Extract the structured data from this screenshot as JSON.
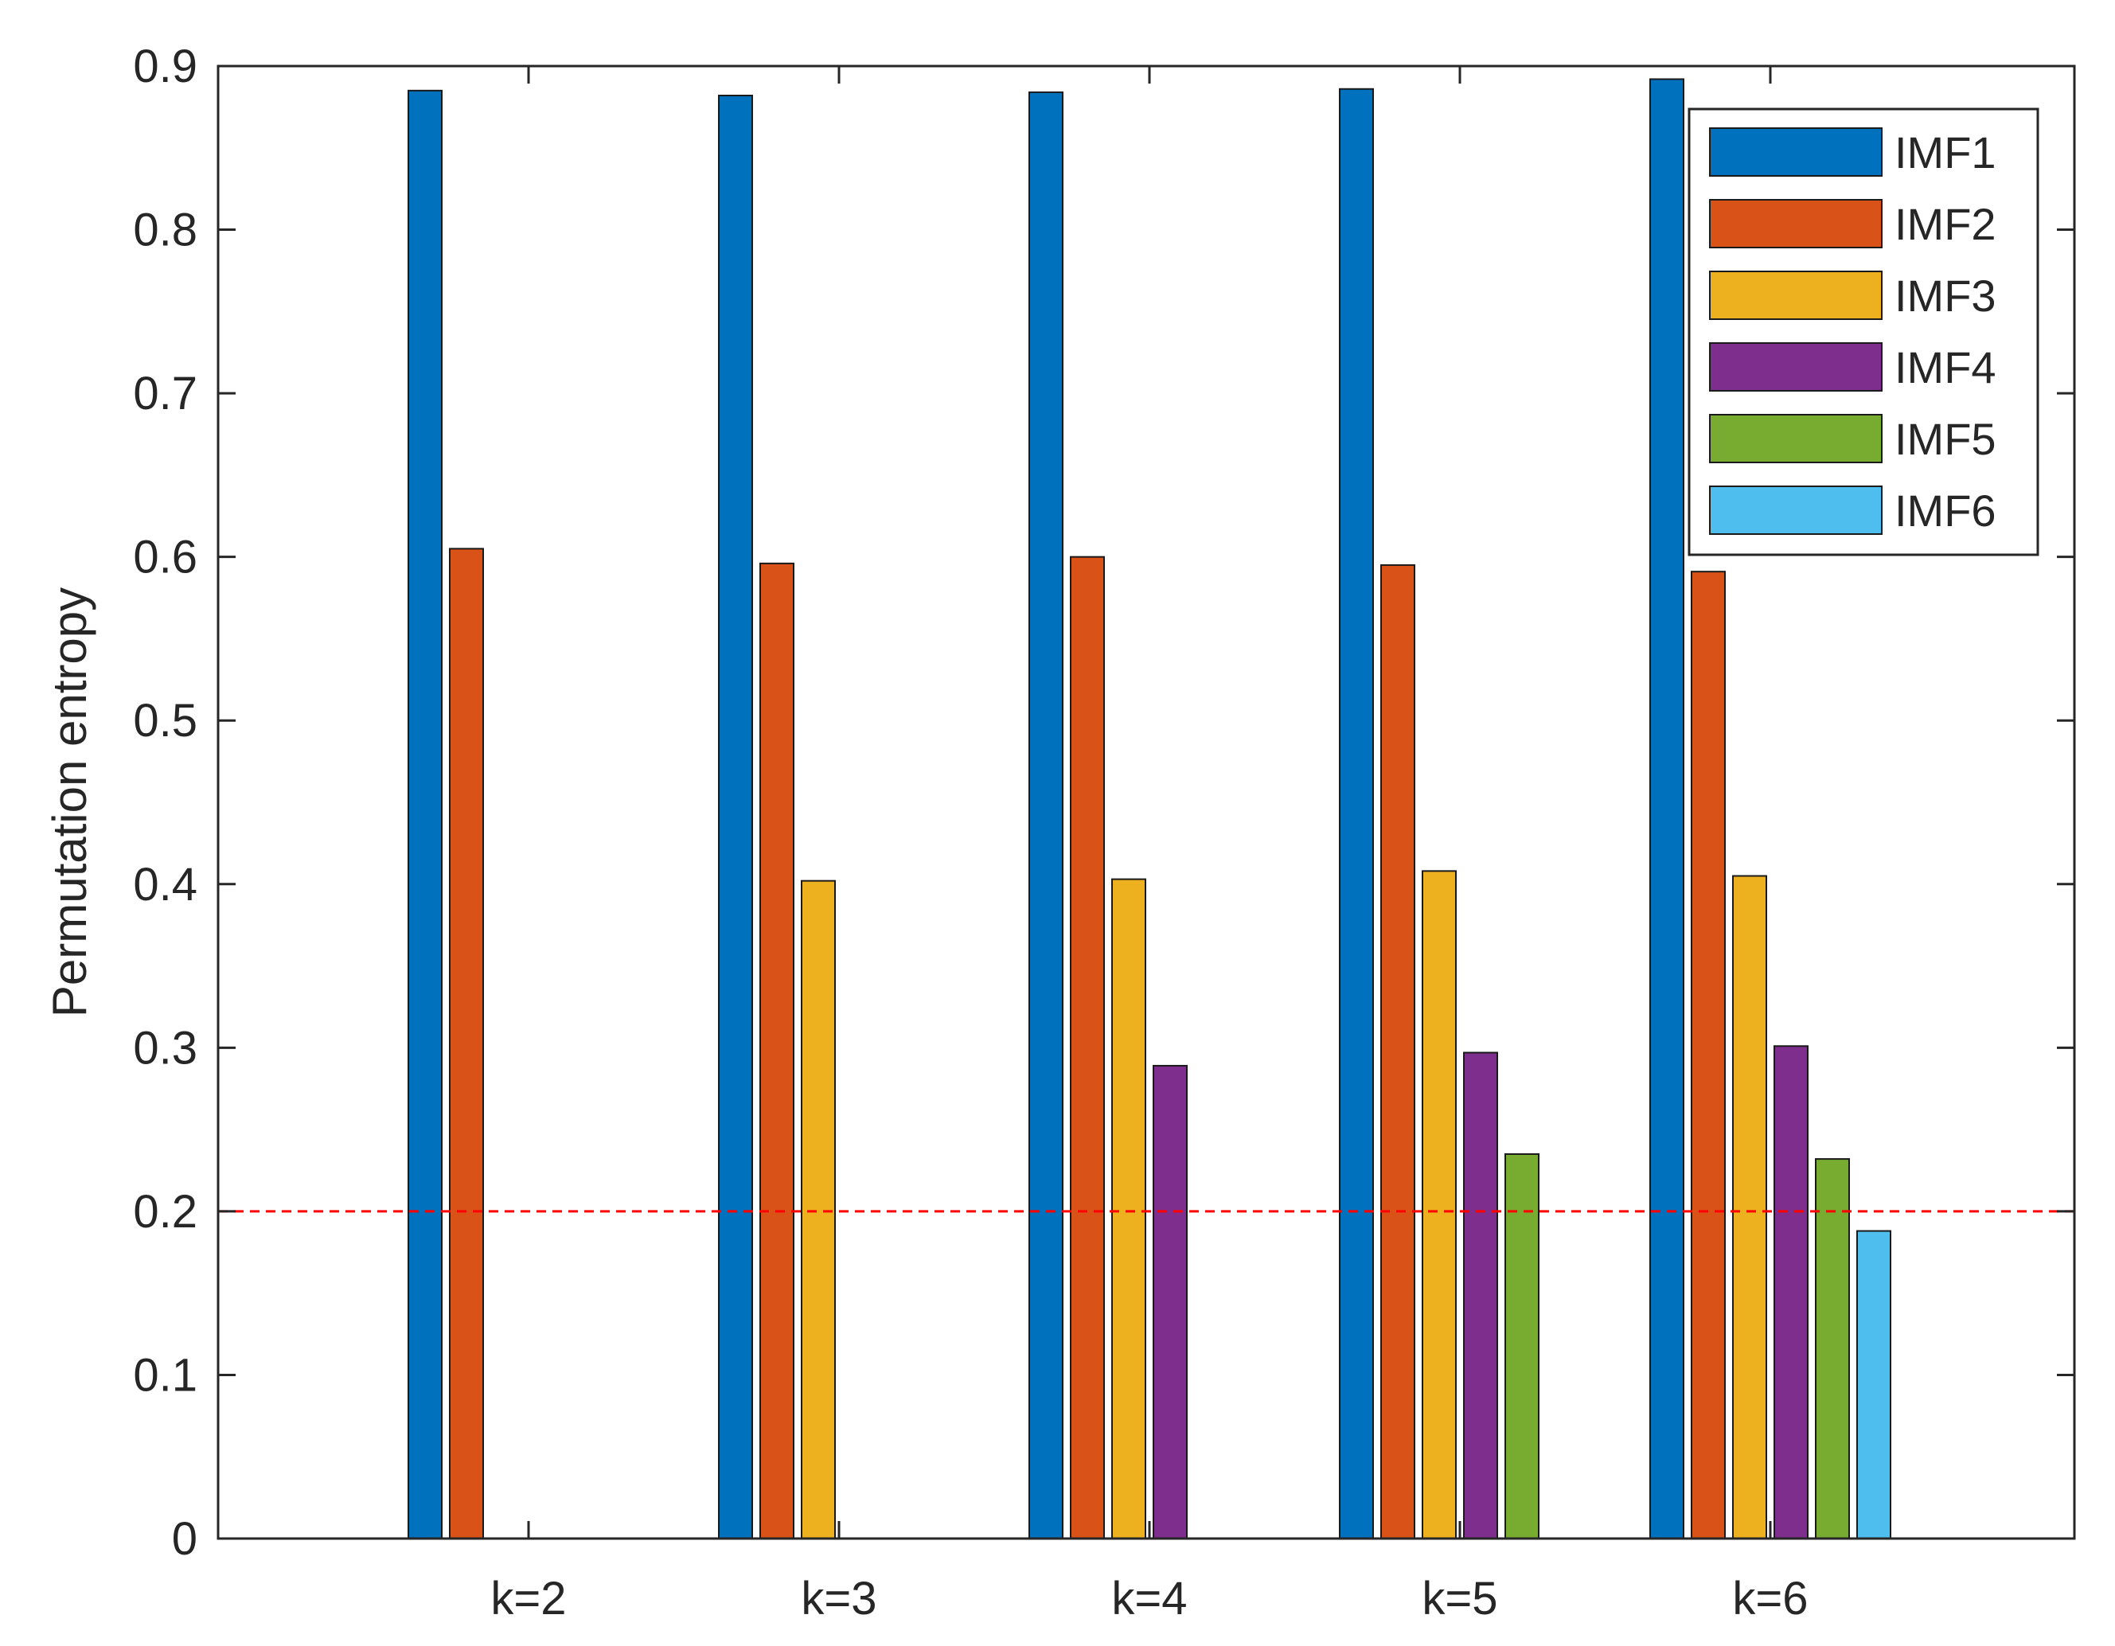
{
  "chart_data": {
    "type": "bar",
    "title": "",
    "xlabel": "",
    "ylabel": "Permutation entropy",
    "ylim": [
      0,
      0.9
    ],
    "yticks": [
      "0",
      "0.1",
      "0.2",
      "0.3",
      "0.4",
      "0.5",
      "0.6",
      "0.7",
      "0.8",
      "0.9"
    ],
    "categories": [
      "k=2",
      "k=3",
      "k=4",
      "k=5",
      "k=6"
    ],
    "series": [
      {
        "name": "IMF1",
        "color": "#0072BD",
        "values": [
          0.885,
          0.882,
          0.884,
          0.886,
          0.892
        ]
      },
      {
        "name": "IMF2",
        "color": "#D95319",
        "values": [
          0.605,
          0.596,
          0.6,
          0.595,
          0.591
        ]
      },
      {
        "name": "IMF3",
        "color": "#EDB120",
        "values": [
          null,
          0.402,
          0.403,
          0.408,
          0.405
        ]
      },
      {
        "name": "IMF4",
        "color": "#7E2F8E",
        "values": [
          null,
          null,
          0.289,
          0.297,
          0.301
        ]
      },
      {
        "name": "IMF5",
        "color": "#77AC30",
        "values": [
          null,
          null,
          null,
          0.235,
          0.232
        ]
      },
      {
        "name": "IMF6",
        "color": "#4DBEEE",
        "values": [
          null,
          null,
          null,
          null,
          0.188
        ]
      }
    ],
    "reference_line": {
      "y": 0.2,
      "color": "#FF0000",
      "style": "dashed"
    },
    "legend": {
      "position": "top-right",
      "entries": [
        "IMF1",
        "IMF2",
        "IMF3",
        "IMF4",
        "IMF5",
        "IMF6"
      ]
    },
    "grid": false
  }
}
